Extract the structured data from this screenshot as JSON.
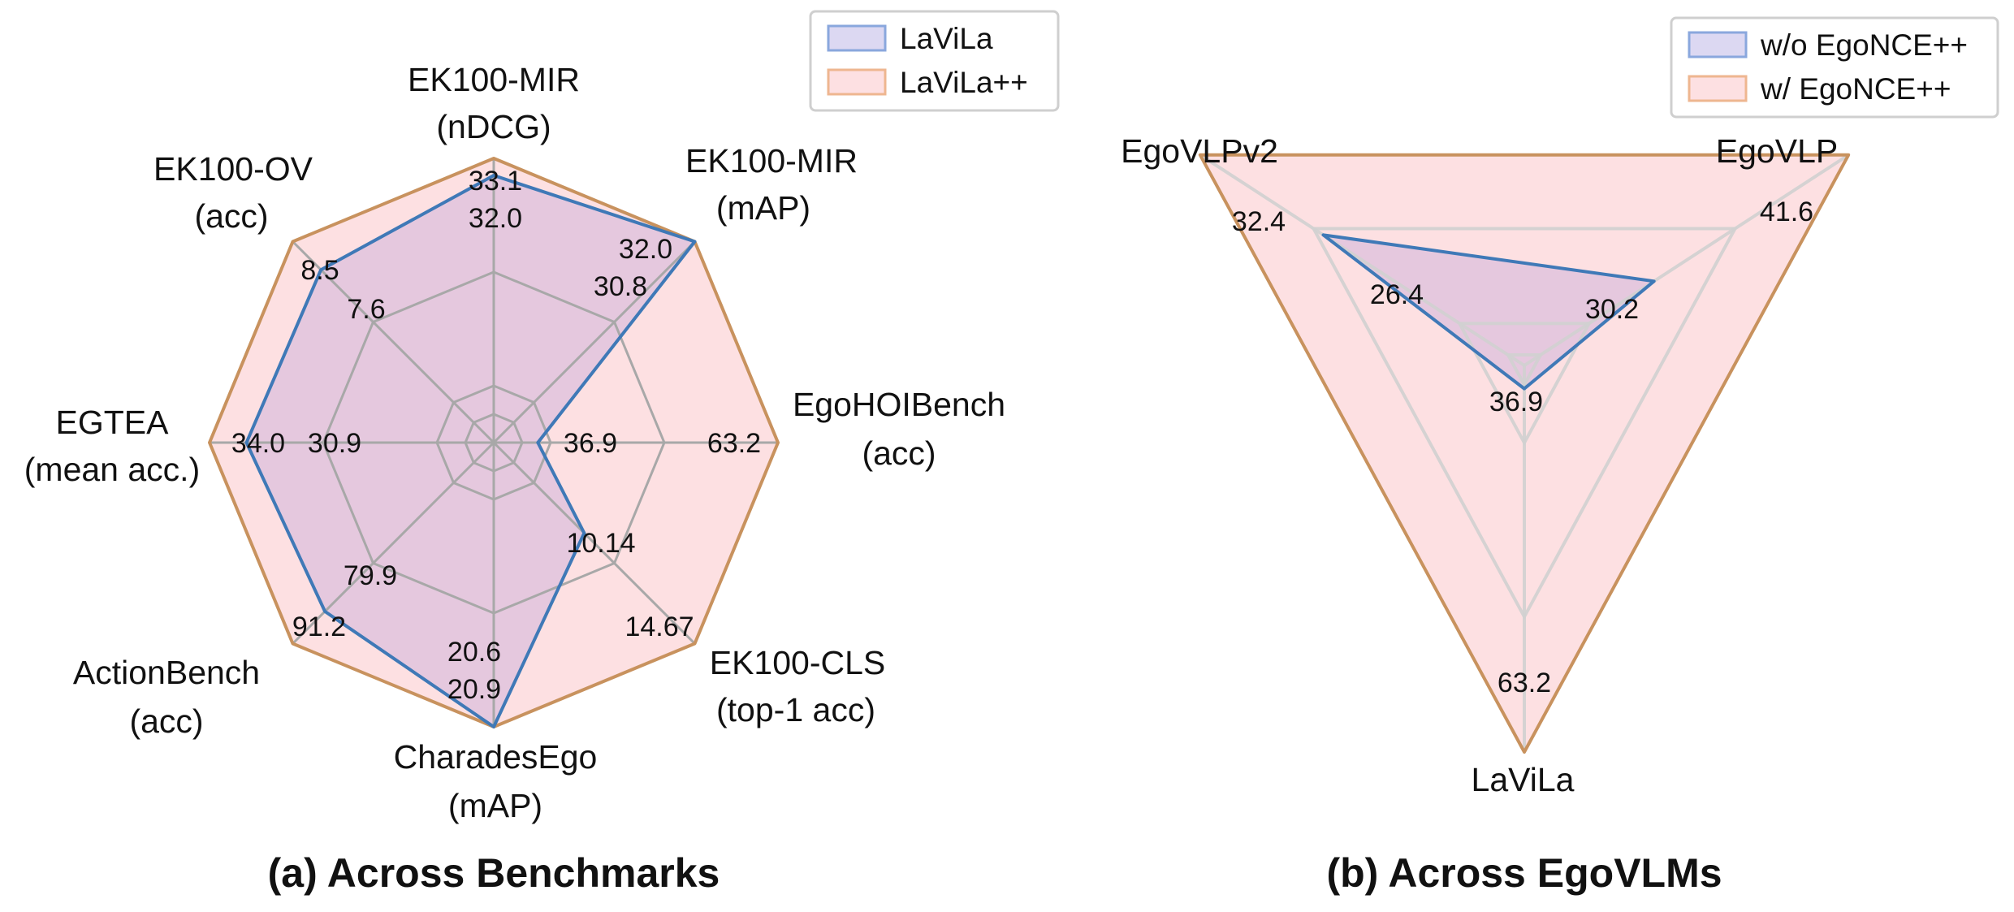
{
  "colors": {
    "background": "#ffffff",
    "grid": "#a8a8a8",
    "blue_line": "#3f79b7",
    "blue_fill": "#dcd8f2",
    "orange_line": "#c8925e",
    "orange_fill": "#fde0e2",
    "overlap_fill": "#e1c3dd"
  },
  "chart_data": [
    {
      "type": "radar",
      "caption": "(a) Across Benchmarks",
      "legend_position": "top-right",
      "legend": [
        {
          "label": "LaViLa",
          "swatch": "blue"
        },
        {
          "label": "LaViLa++",
          "swatch": "orange"
        }
      ],
      "axes": [
        {
          "label_lines": [
            "EK100-MIR",
            "(nDCG)"
          ],
          "blue": 32.0,
          "orange": 33.1,
          "blue_text": "32.0",
          "orange_text": "33.1"
        },
        {
          "label_lines": [
            "EK100-MIR",
            "(mAP)"
          ],
          "blue": 30.8,
          "orange": 32.0,
          "blue_text": "30.8",
          "orange_text": "32.0"
        },
        {
          "label_lines": [
            "EgoHOIBench",
            "(acc)"
          ],
          "blue": 36.9,
          "orange": 63.2,
          "blue_text": "36.9",
          "orange_text": "63.2"
        },
        {
          "label_lines": [
            "EK100-CLS",
            "(top-1 acc)"
          ],
          "blue": 10.14,
          "orange": 14.67,
          "blue_text": "10.14",
          "orange_text": "14.67"
        },
        {
          "label_lines": [
            "CharadesEgo",
            "(mAP)"
          ],
          "blue": 20.6,
          "orange": 20.9,
          "blue_text": "20.6",
          "orange_text": "20.9"
        },
        {
          "label_lines": [
            "ActionBench",
            "(acc)"
          ],
          "blue": 79.9,
          "orange": 91.2,
          "blue_text": "79.9",
          "orange_text": "91.2"
        },
        {
          "label_lines": [
            "EGTEA",
            "(mean acc.)"
          ],
          "blue": 30.9,
          "orange": 34.0,
          "blue_text": "30.9",
          "orange_text": "34.0"
        },
        {
          "label_lines": [
            "EK100-OV",
            "(acc)"
          ],
          "blue": 7.6,
          "orange": 8.5,
          "blue_text": "7.6",
          "orange_text": "8.5"
        }
      ],
      "blue_shape_fraction": [
        0.94,
        1.0,
        0.155,
        0.45,
        1.0,
        0.84,
        0.87,
        0.86
      ],
      "orange_shape_fraction": [
        1.0,
        1.0,
        1.0,
        1.0,
        1.0,
        1.0,
        1.0,
        1.0
      ],
      "grid_fractions": [
        0.1,
        0.2,
        0.6
      ]
    },
    {
      "type": "radar",
      "caption": "(b) Across EgoVLMs",
      "legend_position": "top-right",
      "legend": [
        {
          "label": "w/o EgoNCE++",
          "swatch": "blue"
        },
        {
          "label": "w/ EgoNCE++",
          "swatch": "orange"
        }
      ],
      "axes": [
        {
          "label": "EgoVLP",
          "blue": 30.2,
          "orange": 41.6,
          "blue_text": "30.2",
          "orange_text": "41.6"
        },
        {
          "label": "LaViLa",
          "blue": 36.9,
          "orange": 63.2,
          "blue_text": "36.9",
          "orange_text": "63.2"
        },
        {
          "label": "EgoVLPv2",
          "blue": 26.4,
          "orange": 32.4,
          "blue_text": "26.4",
          "orange_text": "32.4"
        }
      ],
      "blue_shape_fraction": [
        0.4,
        0.06,
        0.62
      ],
      "orange_shape_fraction": [
        1.0,
        1.0,
        1.0
      ],
      "grid_fractions": [
        0.2,
        0.05,
        0.65
      ]
    }
  ]
}
